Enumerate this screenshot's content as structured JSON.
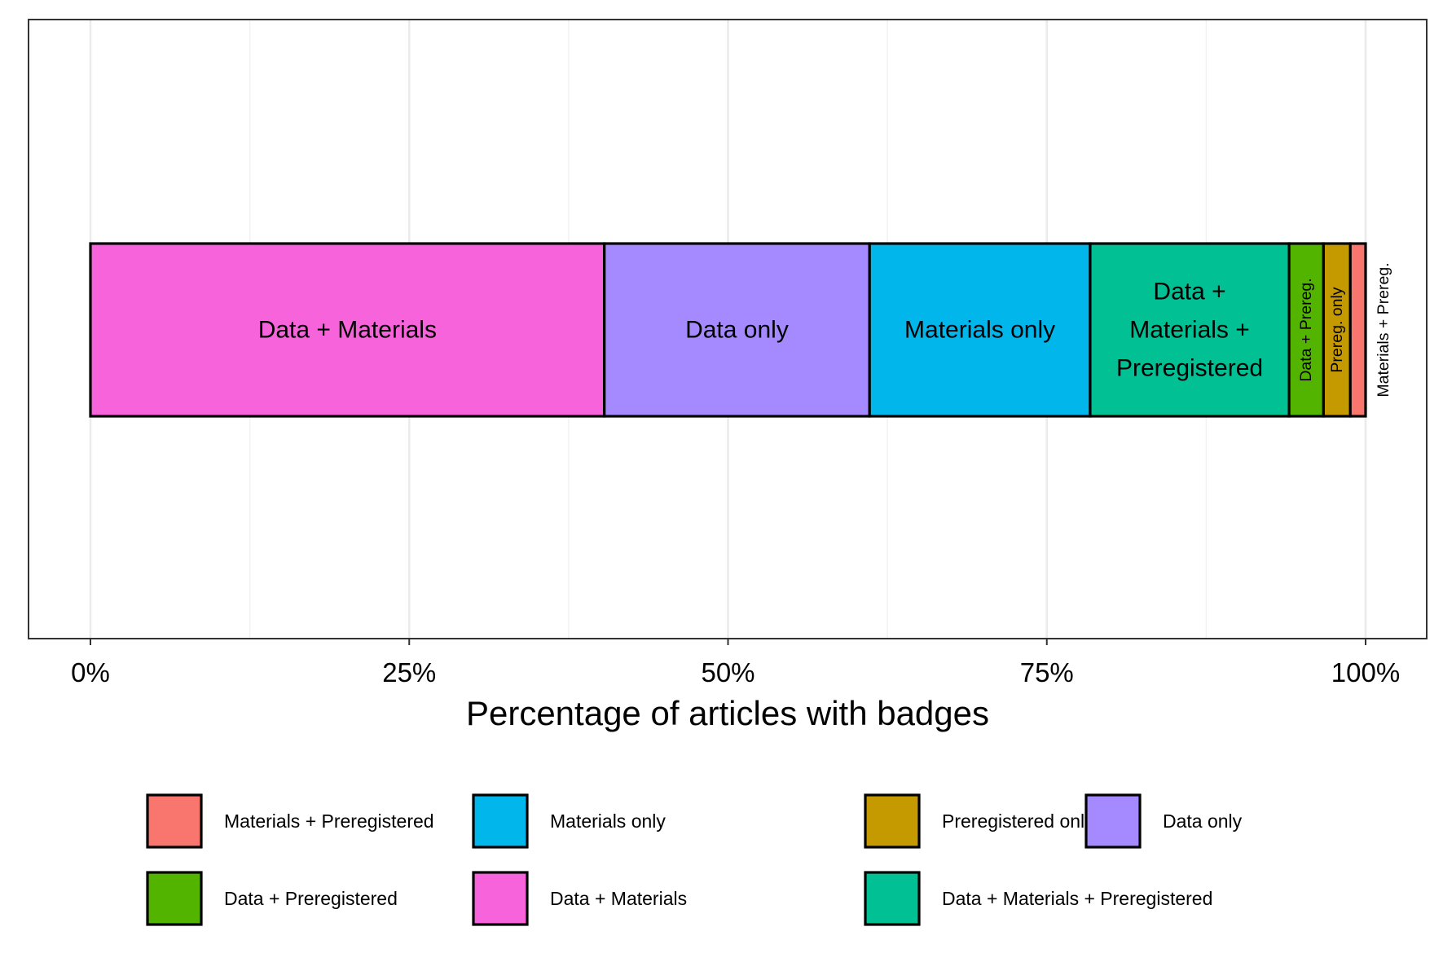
{
  "chart_data": {
    "type": "bar",
    "orientation": "horizontal",
    "stacked": true,
    "xlabel": "Percentage of articles with badges",
    "ylabel": "",
    "xlim": [
      0,
      100
    ],
    "x_ticks": [
      {
        "value": 0,
        "label": "0%"
      },
      {
        "value": 25,
        "label": "25%"
      },
      {
        "value": 50,
        "label": "50%"
      },
      {
        "value": 75,
        "label": "75%"
      },
      {
        "value": 100,
        "label": "100%"
      }
    ],
    "grid": true,
    "legend_position": "bottom",
    "series": [
      {
        "name": "Data + Materials",
        "value": 40.3,
        "color": "#F763DB",
        "bar_label": [
          "Data + Materials"
        ],
        "label_vertical": false
      },
      {
        "name": "Data only",
        "value": 20.8,
        "color": "#A58AFF",
        "bar_label": [
          "Data only"
        ],
        "label_vertical": false
      },
      {
        "name": "Materials only",
        "value": 17.3,
        "color": "#00B6EB",
        "bar_label": [
          "Materials only"
        ],
        "label_vertical": false
      },
      {
        "name": "Data + Materials + Preregistered",
        "value": 15.6,
        "color": "#00C094",
        "bar_label": [
          "Data +",
          "Materials +",
          "Preregistered"
        ],
        "label_vertical": false
      },
      {
        "name": "Data + Preregistered",
        "value": 2.7,
        "color": "#53B400",
        "bar_label": [
          "Data + Prereg."
        ],
        "label_vertical": true
      },
      {
        "name": "Preregistered only",
        "value": 2.1,
        "color": "#C49A00",
        "bar_label": [
          "Prereg. only"
        ],
        "label_vertical": true
      },
      {
        "name": "Materials + Preregistered",
        "value": 1.2,
        "color": "#F8766D",
        "bar_label": [
          "Materials + Prereg."
        ],
        "label_vertical": true
      }
    ],
    "legend_items": [
      {
        "label": "Materials + Preregistered",
        "color": "#F8766D"
      },
      {
        "label": "Data + Preregistered",
        "color": "#53B400"
      },
      {
        "label": "Materials only",
        "color": "#00B6EB"
      },
      {
        "label": "Data + Materials",
        "color": "#F763DB"
      },
      {
        "label": "Preregistered only",
        "color": "#C49A00"
      },
      {
        "label": "Data + Materials + Preregistered",
        "color": "#00C094"
      },
      {
        "label": "Data only",
        "color": "#A58AFF"
      }
    ]
  }
}
